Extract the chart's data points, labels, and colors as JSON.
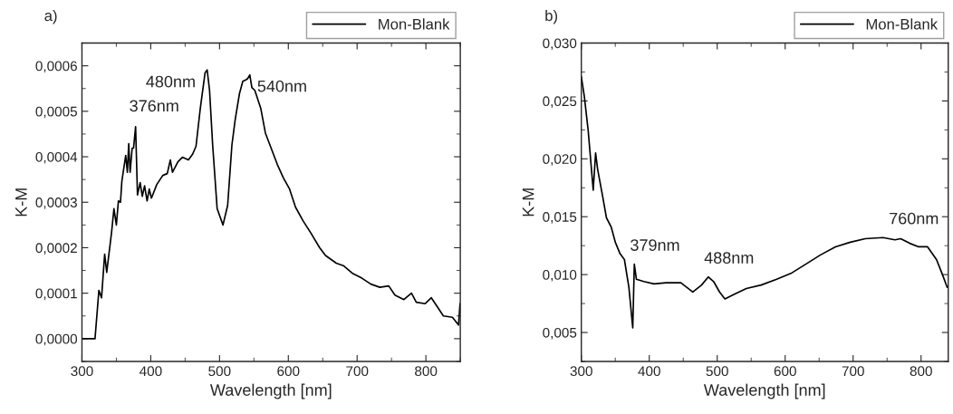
{
  "chart_data": [
    {
      "type": "line",
      "xlabel": "Wavelength [nm]",
      "ylabel": "K-M",
      "legend": "top right",
      "grid": false,
      "marker": "none",
      "line_style": "solid",
      "xlim": [
        300,
        850
      ],
      "xticks": [
        300,
        400,
        500,
        600,
        700,
        800
      ],
      "ylim": [
        -5e-05,
        0.00065
      ],
      "yticks": [
        {
          "value": 0,
          "label": "0,0000"
        },
        {
          "value": 0.0001,
          "label": "0,0001"
        },
        {
          "value": 0.0002,
          "label": "0,0002"
        },
        {
          "value": 0.0003,
          "label": "0,0003"
        },
        {
          "value": 0.0004,
          "label": "0,0004"
        },
        {
          "value": 0.0005,
          "label": "0,0005"
        },
        {
          "value": 0.0006,
          "label": "0,0006"
        }
      ],
      "annotations": [
        "a)",
        {
          "text": "376nm",
          "x": 376,
          "y": 0.00047
        },
        {
          "text": "480nm",
          "x": 480,
          "y": 0.00059
        },
        {
          "text": "540nm",
          "x": 540,
          "y": 0.00058
        }
      ],
      "series": [
        {
          "name": "Mon-Blank",
          "color": "#000000",
          "x": [
            300,
            319,
            324.6,
            328.5,
            333,
            336,
            343,
            346.5,
            350,
            353,
            356,
            358,
            363.6,
            366,
            368,
            370,
            373,
            375,
            378,
            380.7,
            384.6,
            387.7,
            391,
            394.7,
            397.8,
            401,
            408.8,
            417.5,
            424,
            428.5,
            431.6,
            439.5,
            446,
            454.8,
            461,
            465.8,
            472,
            479,
            482,
            485.5,
            490,
            496.5,
            505,
            511.8,
            518,
            522.8,
            529,
            533.8,
            538,
            541,
            544,
            547,
            551.3,
            560,
            566.7,
            575,
            584,
            593,
            601.8,
            610.5,
            621.5,
            632.5,
            645.6,
            654,
            669.7,
            680.7,
            693.9,
            707,
            720,
            733,
            746,
            755,
            768,
            779,
            786,
            799,
            807.9,
            816.7,
            825.4,
            838.6,
            847.4,
            849.6
          ],
          "values": [
            0,
            0,
            0.000106,
            9e-05,
            0.000186,
            0.000146,
            0.000233,
            0.000286,
            0.00025,
            0.000303,
            0.0003,
            0.000346,
            0.000403,
            0.000366,
            0.000429,
            0.000366,
            0.000419,
            0.000419,
            0.000466,
            0.000316,
            0.000343,
            0.000313,
            0.000336,
            0.000303,
            0.000329,
            0.000309,
            0.000339,
            0.000359,
            0.000363,
            0.000393,
            0.000366,
            0.000389,
            0.000399,
            0.000393,
            0.000406,
            0.000423,
            0.000506,
            0.000585,
            0.000591,
            0.000546,
            0.000426,
            0.000286,
            0.00025,
            0.000293,
            0.000426,
            0.000482,
            0.000539,
            0.000566,
            0.000569,
            0.000572,
            0.00058,
            0.000552,
            0.000546,
            0.000506,
            0.000452,
            0.000419,
            0.000383,
            0.000353,
            0.000329,
            0.000289,
            0.000259,
            0.000233,
            0.0002,
            0.000183,
            0.000166,
            0.00016,
            0.000143,
            0.000133,
            0.00012,
            0.000113,
            0.000116,
            9.6e-05,
            8.6e-05,
            0.0001,
            8e-05,
            7.7e-05,
            9e-05,
            7e-05,
            5e-05,
            4.7e-05,
            3e-05,
            7.7e-05
          ]
        }
      ]
    },
    {
      "type": "line",
      "xlabel": "Wavelength [nm]",
      "ylabel": "K-M",
      "legend": "top right",
      "grid": false,
      "marker": "none",
      "line_style": "solid",
      "xlim": [
        300,
        840
      ],
      "xticks": [
        300,
        400,
        500,
        600,
        700,
        800
      ],
      "ylim": [
        0.0025,
        0.03
      ],
      "yticks": [
        {
          "value": 0.005,
          "label": "0,005"
        },
        {
          "value": 0.01,
          "label": "0,010"
        },
        {
          "value": 0.015,
          "label": "0,015"
        },
        {
          "value": 0.02,
          "label": "0,020"
        },
        {
          "value": 0.025,
          "label": "0,025"
        },
        {
          "value": 0.03,
          "label": "0,030"
        }
      ],
      "annotations": [
        "b)",
        {
          "text": "379nm",
          "x": 379,
          "y": 0.0109
        },
        {
          "text": "488nm",
          "x": 488,
          "y": 0.0098
        },
        {
          "text": "760nm",
          "x": 760,
          "y": 0.0132
        }
      ],
      "series": [
        {
          "name": "Mon-Blank",
          "color": "#000000",
          "x": [
            300,
            304.4,
            310,
            317.5,
            321,
            324,
            330.6,
            337,
            344,
            350,
            357,
            363.4,
            370,
            375.7,
            378,
            381,
            392,
            407,
            424.7,
            446.5,
            464,
            477,
            486.8,
            494.7,
            503.4,
            511.3,
            525.3,
            542.8,
            564.7,
            587.5,
            608.4,
            630.3,
            652,
            674,
            695.9,
            717.8,
            744,
            761.5,
            770,
            783.4,
            796.5,
            809.6,
            822.7,
            831.5,
            838.5
          ],
          "values": [
            0.0271,
            0.0254,
            0.0225,
            0.0173,
            0.0205,
            0.0191,
            0.017,
            0.0149,
            0.0141,
            0.0128,
            0.0118,
            0.0113,
            0.0089,
            0.0054,
            0.0109,
            0.0096,
            0.0094,
            0.0092,
            0.0093,
            0.0093,
            0.0085,
            0.0091,
            0.0098,
            0.0094,
            0.0085,
            0.0079,
            0.0083,
            0.0088,
            0.0091,
            0.0096,
            0.0101,
            0.0109,
            0.0117,
            0.0124,
            0.0128,
            0.0131,
            0.0132,
            0.013,
            0.0131,
            0.0127,
            0.0124,
            0.0124,
            0.0113,
            0.01,
            0.0089
          ]
        }
      ]
    }
  ]
}
